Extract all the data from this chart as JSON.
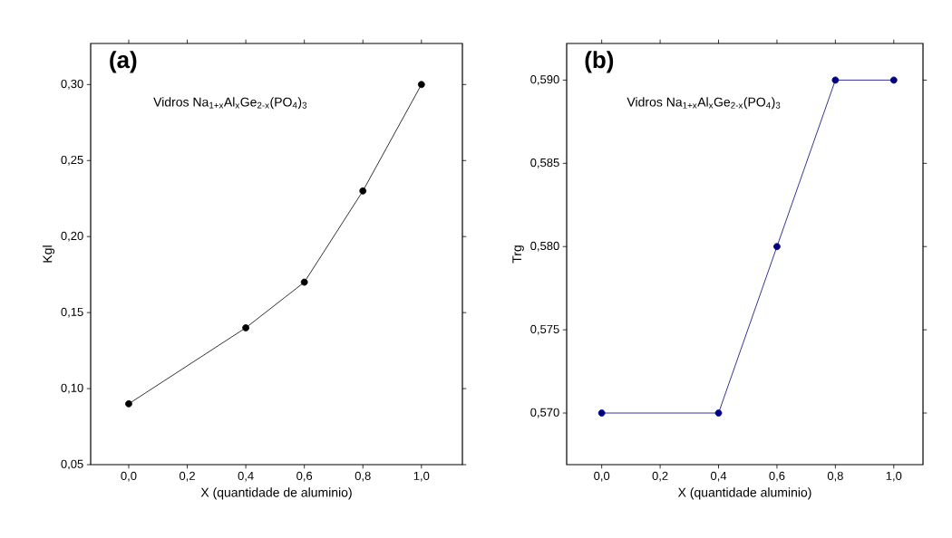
{
  "chart_data": [
    {
      "type": "line",
      "xlabel": "X (quantidade de aluminio)",
      "ylabel": "Kgl",
      "annotations": [
        "(a)",
        "Vidros Na$_{1+x}$Al$_{x}$Ge$_{2-x}$(PO$_{4}$)$_{3}$"
      ],
      "x": [
        0.0,
        0.4,
        0.6,
        0.8,
        1.0
      ],
      "values": [
        0.09,
        0.14,
        0.17,
        0.23,
        0.3
      ],
      "color": "#000000",
      "marker": "circle",
      "line_style": "solid",
      "xlim": [
        -0.13,
        1.14
      ],
      "ylim": [
        0.05,
        0.327
      ],
      "xticks": [
        {
          "value": 0.0,
          "label": "0,0"
        },
        {
          "value": 0.2,
          "label": "0,2"
        },
        {
          "value": 0.4,
          "label": "0,4"
        },
        {
          "value": 0.6,
          "label": "0,6"
        },
        {
          "value": 0.8,
          "label": "0,8"
        },
        {
          "value": 1.0,
          "label": "1,0"
        }
      ],
      "yticks": [
        {
          "value": 0.05,
          "label": "0,05"
        },
        {
          "value": 0.1,
          "label": "0,10"
        },
        {
          "value": 0.15,
          "label": "0,15"
        },
        {
          "value": 0.2,
          "label": "0,20"
        },
        {
          "value": 0.25,
          "label": "0,25"
        },
        {
          "value": 0.3,
          "label": "0,30"
        }
      ]
    },
    {
      "type": "line",
      "xlabel": "X (quantidade aluminio)",
      "ylabel": "Trg",
      "annotations": [
        "(b)",
        "Vidros Na$_{1+x}$Al$_{x}$Ge$_{2-x}$(PO$_{4}$)$_{3}$"
      ],
      "x": [
        0.0,
        0.4,
        0.6,
        0.8,
        1.0
      ],
      "values": [
        0.57,
        0.57,
        0.58,
        0.59,
        0.59
      ],
      "color": "#000080",
      "marker": "circle",
      "line_style": "solid",
      "xlim": [
        -0.12,
        1.1
      ],
      "ylim": [
        0.5669,
        0.5922
      ],
      "xticks": [
        {
          "value": 0.0,
          "label": "0,0"
        },
        {
          "value": 0.2,
          "label": "0,2"
        },
        {
          "value": 0.4,
          "label": "0,4"
        },
        {
          "value": 0.6,
          "label": "0,6"
        },
        {
          "value": 0.8,
          "label": "0,8"
        },
        {
          "value": 1.0,
          "label": "1,0"
        }
      ],
      "yticks": [
        {
          "value": 0.57,
          "label": "0,570"
        },
        {
          "value": 0.575,
          "label": "0,575"
        },
        {
          "value": 0.58,
          "label": "0,580"
        },
        {
          "value": 0.585,
          "label": "0,585"
        },
        {
          "value": 0.59,
          "label": "0,590"
        }
      ]
    }
  ]
}
